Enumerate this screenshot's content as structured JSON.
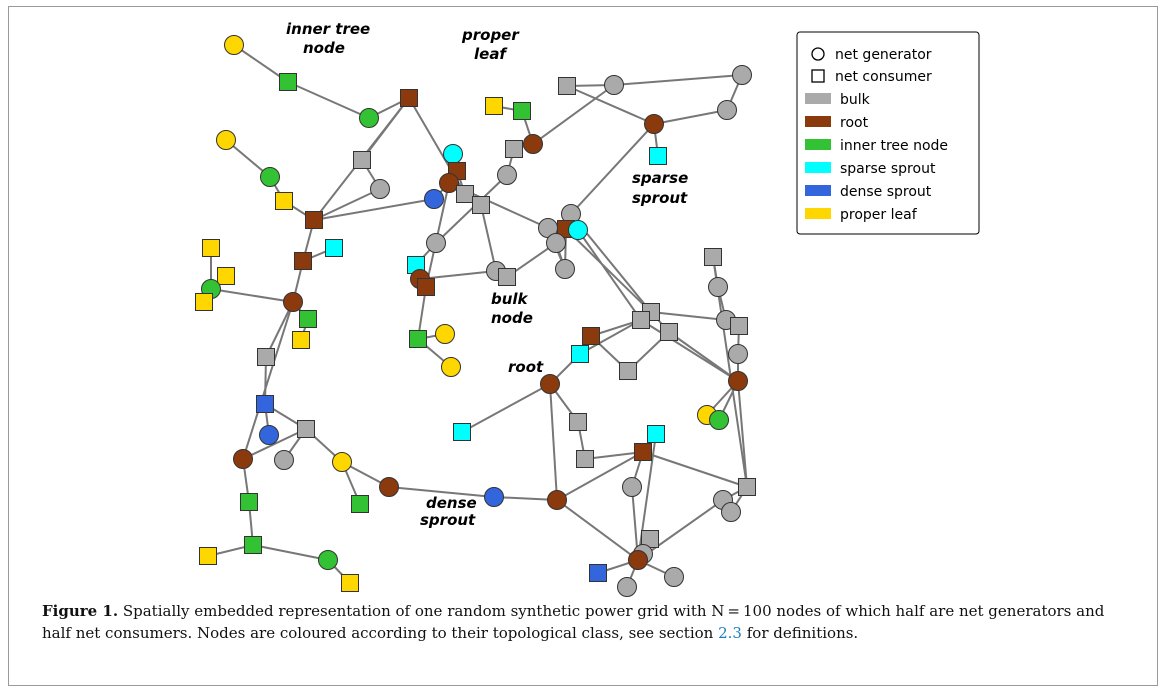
{
  "figure": {
    "label": "Figure 1.",
    "caption_before_ref": "Spatially embedded representation of one random synthetic power grid with N = 100 nodes of which half are net generators and half net consumers. Nodes are coloured according to their topological class, see section",
    "caption_ref": "2.3",
    "caption_after_ref": "for definitions."
  },
  "legend": {
    "generator": "net generator",
    "consumer": "net consumer",
    "classes": [
      {
        "key": "bulk",
        "label": "bulk",
        "color": "#aaaaaa"
      },
      {
        "key": "root",
        "label": "root",
        "color": "#8b3a0e"
      },
      {
        "key": "inner",
        "label": "inner tree node",
        "color": "#33c233"
      },
      {
        "key": "sparse",
        "label": "sparse sprout",
        "color": "#00ffff"
      },
      {
        "key": "dense",
        "label": "dense sprout",
        "color": "#3366dd"
      },
      {
        "key": "leaf",
        "label": "proper leaf",
        "color": "#ffd700"
      }
    ]
  },
  "annotations": {
    "inner_tree_1": "inner tree",
    "inner_tree_2": "node",
    "proper_leaf_1": "proper",
    "proper_leaf_2": "leaf",
    "sparse_sprout_1": "sparse",
    "sparse_sprout_2": "sprout",
    "bulk_node_1": "bulk",
    "bulk_node_2": "node",
    "root": "root",
    "dense_sprout_1": "dense",
    "dense_sprout_2": "sprout"
  },
  "colors": {
    "bulk": "#aaaaaa",
    "root": "#8b3a0e",
    "inner": "#33c233",
    "sparse": "#00ffff",
    "dense": "#3366dd",
    "leaf": "#ffd700",
    "edge": "#777777",
    "ref_link": "#1a7fc1"
  }
}
